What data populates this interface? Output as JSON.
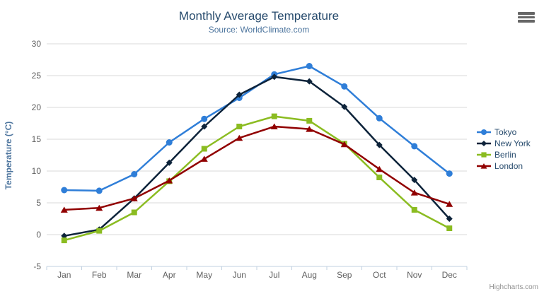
{
  "header": {
    "title": "Monthly Average Temperature",
    "subtitle": "Source: WorldClimate.com"
  },
  "credits": {
    "label": "Highcharts.com"
  },
  "chart_data": {
    "type": "line",
    "title": "Monthly Average Temperature",
    "subtitle": "Source: WorldClimate.com",
    "categories": [
      "Jan",
      "Feb",
      "Mar",
      "Apr",
      "May",
      "Jun",
      "Jul",
      "Aug",
      "Sep",
      "Oct",
      "Nov",
      "Dec"
    ],
    "series": [
      {
        "name": "Tokyo",
        "color": "#2f7ed8",
        "marker": "circle",
        "values": [
          7.0,
          6.9,
          9.5,
          14.5,
          18.2,
          21.5,
          25.2,
          26.5,
          23.3,
          18.3,
          13.9,
          9.6
        ]
      },
      {
        "name": "New York",
        "color": "#0d233a",
        "marker": "diamond",
        "values": [
          -0.2,
          0.8,
          5.7,
          11.3,
          17.0,
          22.0,
          24.8,
          24.1,
          20.1,
          14.1,
          8.6,
          2.5
        ]
      },
      {
        "name": "Berlin",
        "color": "#8bbc21",
        "marker": "square",
        "values": [
          -0.9,
          0.6,
          3.5,
          8.4,
          13.5,
          17.0,
          18.6,
          17.9,
          14.3,
          9.0,
          3.9,
          1.0
        ]
      },
      {
        "name": "London",
        "color": "#910000",
        "marker": "triangle",
        "values": [
          3.9,
          4.2,
          5.7,
          8.5,
          11.9,
          15.2,
          17.0,
          16.6,
          14.2,
          10.3,
          6.6,
          4.8
        ]
      }
    ],
    "xlabel": "",
    "ylabel": "Temperature (°C)",
    "ylim": [
      -5,
      30
    ],
    "ytick_step": 5,
    "grid": true,
    "legend_position": "right-middle"
  },
  "theme": {
    "background": "#ffffff",
    "title_color": "#274b6d",
    "subtitle_color": "#4d759e",
    "axis_label_color": "#606060",
    "axis_title_color": "#4d759e",
    "grid_color": "#d8d8d8",
    "axis_line_color": "#c0d0e0",
    "legend_text_color": "#274b6d",
    "credits_color": "#909090",
    "menu_icon_color": "#666666"
  }
}
